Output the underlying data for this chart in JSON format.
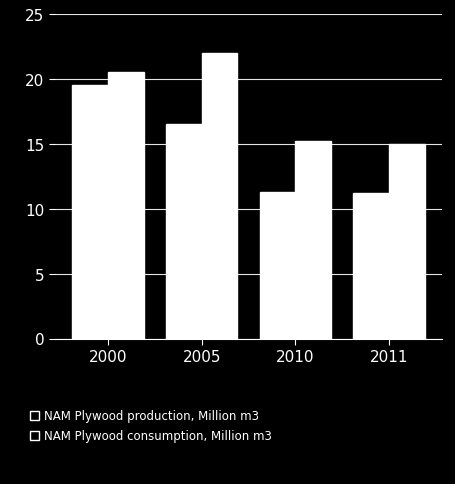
{
  "years": [
    "2000",
    "2005",
    "2010",
    "2011"
  ],
  "production": [
    19.5,
    16.5,
    11.3,
    11.2
  ],
  "consumption": [
    20.5,
    22.0,
    15.2,
    15.0
  ],
  "bar_color": "#ffffff",
  "background_color": "#000000",
  "text_color": "#ffffff",
  "grid_color": "#ffffff",
  "grid_alpha": 0.9,
  "grid_linewidth": 0.8,
  "ylim": [
    0,
    25
  ],
  "yticks": [
    0,
    5,
    10,
    15,
    20,
    25
  ],
  "legend_label_production": "NAM Plywood production, Million m3",
  "legend_label_consumption": "NAM Plywood consumption, Million m3",
  "bar_width": 0.38,
  "figsize": [
    4.56,
    4.85
  ],
  "dpi": 100
}
